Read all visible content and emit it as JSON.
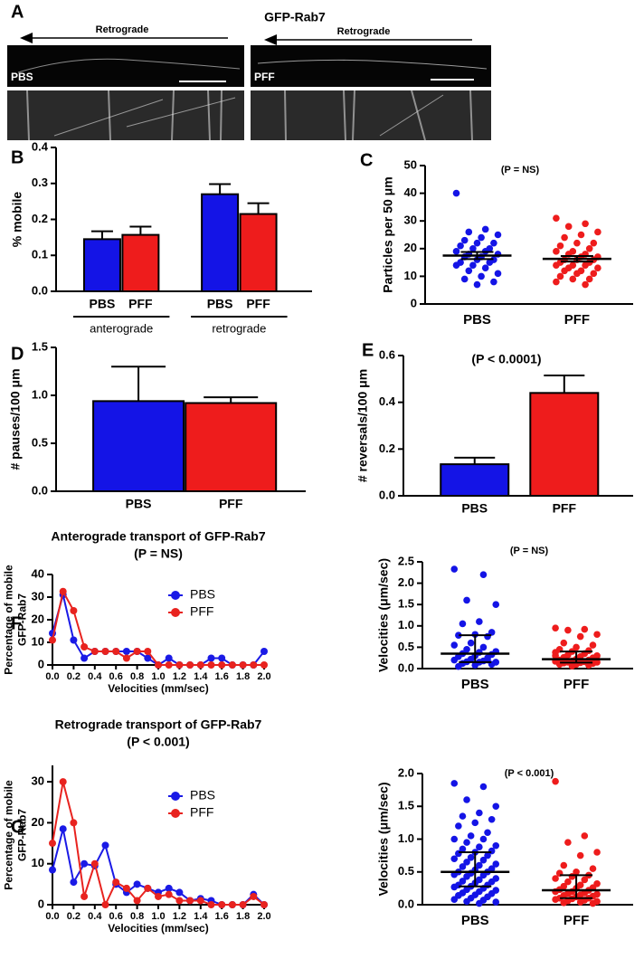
{
  "panel_a": {
    "label": "A",
    "title": "GFP-Rab7",
    "arrow_labels": [
      "Retrograde",
      "Retrograde"
    ],
    "image_labels": [
      "PBS",
      "PFF"
    ]
  },
  "chart_data": [
    {
      "type": "bar",
      "panel_label": "B",
      "ylabel": "% mobile",
      "categories": [
        "PBS",
        "PFF",
        "PBS",
        "PFF"
      ],
      "group_labels": [
        "anterograde",
        "retrograde"
      ],
      "values": [
        0.145,
        0.157,
        0.27,
        0.215
      ],
      "errors": [
        0.022,
        0.023,
        0.028,
        0.03
      ],
      "colors": [
        "#1414e6",
        "#ee1c1c",
        "#1414e6",
        "#ee1c1c"
      ],
      "ylim": [
        0,
        0.4
      ],
      "yticks": [
        {
          "value": 0,
          "label": "0.0"
        },
        0.1,
        0.2,
        0.3,
        0.4
      ]
    },
    {
      "type": "strip",
      "panel_label": "C",
      "title": "(P = NS)",
      "ylabel": "Particles per 50 μm",
      "categories": [
        "PBS",
        "PFF"
      ],
      "series": [
        {
          "color": "#1414e6",
          "values": [
            40,
            27,
            26,
            25,
            24,
            23,
            22,
            22,
            21,
            20,
            20,
            19,
            19,
            18,
            18,
            17,
            17,
            16,
            16,
            15,
            15,
            14,
            14,
            13,
            12,
            11,
            10,
            9,
            8,
            7
          ],
          "summary": {
            "center": 17.5,
            "low": 16.2,
            "high": 18.8
          }
        },
        {
          "color": "#ee1c1c",
          "values": [
            31,
            29,
            28,
            26,
            25,
            24,
            22,
            22,
            21,
            20,
            19,
            19,
            18,
            18,
            17,
            17,
            16,
            16,
            16,
            15,
            15,
            14,
            14,
            14,
            13,
            13,
            12,
            12,
            11,
            11,
            10,
            9,
            9,
            8,
            7
          ],
          "summary": {
            "center": 16.3,
            "low": 15.3,
            "high": 17.3
          }
        }
      ],
      "ylim": [
        0,
        50
      ],
      "yticks": [
        0,
        10,
        20,
        30,
        40,
        50
      ]
    },
    {
      "type": "bar",
      "panel_label": "D",
      "ylabel": "# pauses/100 μm",
      "categories": [
        "PBS",
        "PFF"
      ],
      "values": [
        0.94,
        0.92
      ],
      "errors": [
        0.36,
        0.06
      ],
      "colors": [
        "#1414e6",
        "#ee1c1c"
      ],
      "ylim": [
        0,
        1.5
      ],
      "yticks": [
        {
          "value": 0,
          "label": "0.0"
        },
        0.5,
        {
          "value": 1,
          "label": "1.0"
        },
        1.5
      ]
    },
    {
      "type": "bar",
      "panel_label": "E",
      "title": "(P < 0.0001)",
      "ylabel": "# reversals/100 μm",
      "categories": [
        "PBS",
        "PFF"
      ],
      "values": [
        0.135,
        0.44
      ],
      "errors": [
        0.028,
        0.075
      ],
      "colors": [
        "#1414e6",
        "#ee1c1c"
      ],
      "ylim": [
        0,
        0.6
      ],
      "yticks": [
        {
          "value": 0,
          "label": "0.0"
        },
        0.2,
        0.4,
        0.6
      ]
    },
    {
      "type": "line",
      "panel_label": "F",
      "title": "Anterograde transport of GFP-Rab7",
      "subtitle": "(P = NS)",
      "xlabel": "Velocities (mm/sec)",
      "ylabel": [
        "Percentage of mobile",
        "GFP-Rab7"
      ],
      "legend": "upper right",
      "x": [
        0,
        0.1,
        0.2,
        0.3,
        0.4,
        0.5,
        0.6,
        0.7,
        0.8,
        0.9,
        1.0,
        1.1,
        1.2,
        1.3,
        1.4,
        1.5,
        1.6,
        1.7,
        1.8,
        1.9,
        2.0
      ],
      "series": [
        {
          "name": "PBS",
          "color": "#1a1ae6",
          "values": [
            14,
            31,
            11,
            3,
            6,
            6,
            6,
            6,
            6,
            3,
            0,
            3,
            0,
            0,
            0,
            3,
            3,
            0,
            0,
            0,
            6
          ]
        },
        {
          "name": "PFF",
          "color": "#e8231f",
          "values": [
            11,
            32.5,
            24,
            8,
            6,
            6,
            6,
            3,
            6,
            6,
            0,
            0,
            0,
            0,
            0,
            0,
            0,
            0,
            0,
            0,
            0
          ]
        }
      ],
      "xlim": [
        0,
        2.0
      ],
      "xticks": [
        {
          "value": 0,
          "label": "0.0"
        },
        0.2,
        0.4,
        0.6,
        0.8,
        {
          "value": 1,
          "label": "1.0"
        },
        1.2,
        1.4,
        1.6,
        1.8,
        {
          "value": 2,
          "label": "2.0"
        }
      ],
      "ylim": [
        0,
        40
      ],
      "yticks": [
        0,
        10,
        20,
        30,
        40
      ]
    },
    {
      "type": "strip",
      "title": "(P = NS)",
      "ylabel": "Velocities (μm/sec)",
      "categories": [
        "PBS",
        "PFF"
      ],
      "series": [
        {
          "color": "#1414e6",
          "values": [
            2.33,
            2.2,
            1.6,
            1.5,
            1.1,
            1.05,
            0.85,
            0.8,
            0.78,
            0.75,
            0.6,
            0.55,
            0.5,
            0.45,
            0.4,
            0.38,
            0.35,
            0.33,
            0.3,
            0.28,
            0.25,
            0.22,
            0.2,
            0.18,
            0.16,
            0.15,
            0.15,
            0.12,
            0.1,
            0.08,
            0.05,
            0.2
          ],
          "summary": {
            "center": 0.35,
            "low": 0.15,
            "high": 0.78
          }
        },
        {
          "color": "#ee1c1c",
          "values": [
            0.95,
            0.92,
            0.9,
            0.8,
            0.75,
            0.6,
            0.55,
            0.5,
            0.45,
            0.42,
            0.4,
            0.38,
            0.35,
            0.32,
            0.3,
            0.28,
            0.26,
            0.25,
            0.22,
            0.2,
            0.2,
            0.18,
            0.17,
            0.16,
            0.15,
            0.15,
            0.14,
            0.13,
            0.12,
            0.1,
            0.1,
            0.08,
            0.06,
            0.3
          ],
          "summary": {
            "center": 0.22,
            "low": 0.14,
            "high": 0.4
          }
        }
      ],
      "ylim": [
        0,
        2.5
      ],
      "yticks": [
        {
          "value": 0,
          "label": "0.0"
        },
        0.5,
        {
          "value": 1,
          "label": "1.0"
        },
        1.5,
        {
          "value": 2,
          "label": "2.0"
        },
        2.5
      ]
    },
    {
      "type": "line",
      "panel_label": "G",
      "title": "Retrograde transport of GFP-Rab7",
      "subtitle": "(P < 0.001)",
      "xlabel": "Velocities (mm/sec)",
      "ylabel": [
        "Percentage of mobile",
        "GFP-Rab7"
      ],
      "legend": "upper right",
      "x": [
        0,
        0.1,
        0.2,
        0.3,
        0.4,
        0.5,
        0.6,
        0.7,
        0.8,
        0.9,
        1.0,
        1.1,
        1.2,
        1.3,
        1.4,
        1.5,
        1.6,
        1.7,
        1.8,
        1.9,
        2.0
      ],
      "series": [
        {
          "name": "PBS",
          "color": "#1a1ae6",
          "values": [
            8.5,
            18.5,
            5.5,
            10,
            9.5,
            14.5,
            5,
            3,
            5,
            4,
            3,
            4,
            3,
            1,
            1.5,
            1,
            0,
            0,
            0,
            2.5,
            0
          ]
        },
        {
          "name": "PFF",
          "color": "#e8231f",
          "values": [
            15,
            30,
            20,
            2,
            10,
            0,
            5.5,
            4,
            1,
            4,
            2,
            2.5,
            1,
            1,
            1,
            0,
            0,
            0,
            0,
            2,
            0
          ]
        }
      ],
      "xlim": [
        0,
        2.0
      ],
      "xticks": [
        {
          "value": 0,
          "label": "0.0"
        },
        0.2,
        0.4,
        0.6,
        0.8,
        {
          "value": 1,
          "label": "1.0"
        },
        1.2,
        1.4,
        1.6,
        1.8,
        {
          "value": 2,
          "label": "2.0"
        }
      ],
      "ylim": [
        0,
        34
      ],
      "yticks": [
        0,
        10,
        20,
        30
      ]
    },
    {
      "type": "strip",
      "title": "(P < 0.001)",
      "ylabel": "Velocities (μm/sec)",
      "categories": [
        "PBS",
        "PFF"
      ],
      "series": [
        {
          "color": "#1414e6",
          "values": [
            1.85,
            1.8,
            1.6,
            1.5,
            1.4,
            1.35,
            1.3,
            1.25,
            1.2,
            1.1,
            1.05,
            1.0,
            1.0,
            0.95,
            0.9,
            0.88,
            0.85,
            0.82,
            0.8,
            0.78,
            0.75,
            0.72,
            0.7,
            0.68,
            0.65,
            0.62,
            0.6,
            0.58,
            0.55,
            0.53,
            0.5,
            0.5,
            0.48,
            0.46,
            0.45,
            0.43,
            0.4,
            0.38,
            0.36,
            0.35,
            0.33,
            0.3,
            0.3,
            0.28,
            0.27,
            0.25,
            0.23,
            0.22,
            0.2,
            0.18,
            0.17,
            0.15,
            0.14,
            0.12,
            0.1,
            0.08,
            0.07,
            0.05,
            0.04,
            0.02
          ],
          "summary": {
            "center": 0.5,
            "low": 0.28,
            "high": 0.8
          }
        },
        {
          "color": "#ee1c1c",
          "values": [
            1.88,
            1.05,
            0.95,
            0.8,
            0.75,
            0.6,
            0.55,
            0.5,
            0.48,
            0.45,
            0.43,
            0.4,
            0.38,
            0.35,
            0.32,
            0.3,
            0.28,
            0.26,
            0.25,
            0.23,
            0.22,
            0.2,
            0.2,
            0.18,
            0.17,
            0.16,
            0.15,
            0.14,
            0.13,
            0.12,
            0.1,
            0.1,
            0.09,
            0.08,
            0.07,
            0.06,
            0.05,
            0.04,
            0.03,
            0.02
          ],
          "summary": {
            "center": 0.22,
            "low": 0.1,
            "high": 0.45
          }
        }
      ],
      "ylim": [
        0,
        2.0
      ],
      "yticks": [
        {
          "value": 0,
          "label": "0.0"
        },
        0.5,
        {
          "value": 1,
          "label": "1.0"
        },
        1.5,
        {
          "value": 2,
          "label": "2.0"
        }
      ]
    }
  ]
}
